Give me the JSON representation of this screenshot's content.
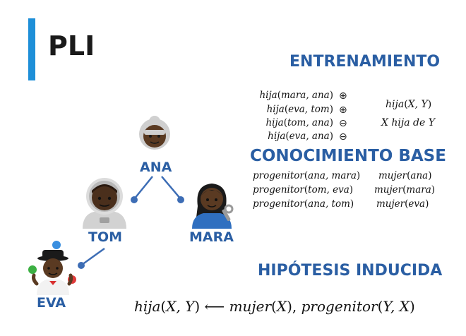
{
  "title": "PLI",
  "training": {
    "heading": "ENTRENAMIENTO",
    "examples": [
      {
        "pred": "hija",
        "args": "mara, ana",
        "sign": "⊕"
      },
      {
        "pred": "hija",
        "args": "eva, tom",
        "sign": "⊕"
      },
      {
        "pred": "hija",
        "args": "tom, ana",
        "sign": "⊖"
      },
      {
        "pred": "hija",
        "args": "eva, ana",
        "sign": "⊖"
      }
    ],
    "target": {
      "pred": "hija",
      "args": "X, Y",
      "meaning": "X hija de Y"
    }
  },
  "background": {
    "heading": "CONOCIMIENTO BASE",
    "parents": [
      {
        "pred": "progenitor",
        "args": "ana, mara"
      },
      {
        "pred": "progenitor",
        "args": "tom,  eva"
      },
      {
        "pred": "progenitor",
        "args": "ana,  tom"
      }
    ],
    "women": [
      {
        "pred": "mujer",
        "args": "ana"
      },
      {
        "pred": "mujer",
        "args": "mara"
      },
      {
        "pred": "mujer",
        "args": "eva"
      }
    ]
  },
  "hypothesis": {
    "heading": "HIPÓTESIS INDUCIDA",
    "head_pred": "hija",
    "head_args": "X, Y",
    "arrow": "⟵",
    "body1_pred": "mujer",
    "body1_args": "X",
    "body2_pred": "progenitor",
    "body2_args": "Y, X"
  },
  "family": {
    "people": [
      {
        "id": "ana",
        "name": "ANA",
        "avatar": "elderly-woman-icon"
      },
      {
        "id": "tom",
        "name": "TOM",
        "avatar": "astronaut-icon"
      },
      {
        "id": "mara",
        "name": "MARA",
        "avatar": "mechanic-woman-icon"
      },
      {
        "id": "eva",
        "name": "EVA",
        "avatar": "juggler-woman-icon"
      }
    ],
    "edges": [
      [
        "ana",
        "tom"
      ],
      [
        "ana",
        "mara"
      ],
      [
        "tom",
        "eva"
      ]
    ]
  },
  "colors": {
    "accent_bar": "#1e8fd8",
    "heading": "#2a5ea3",
    "edge": "#3d6db5",
    "skin": "#5a3a22"
  }
}
